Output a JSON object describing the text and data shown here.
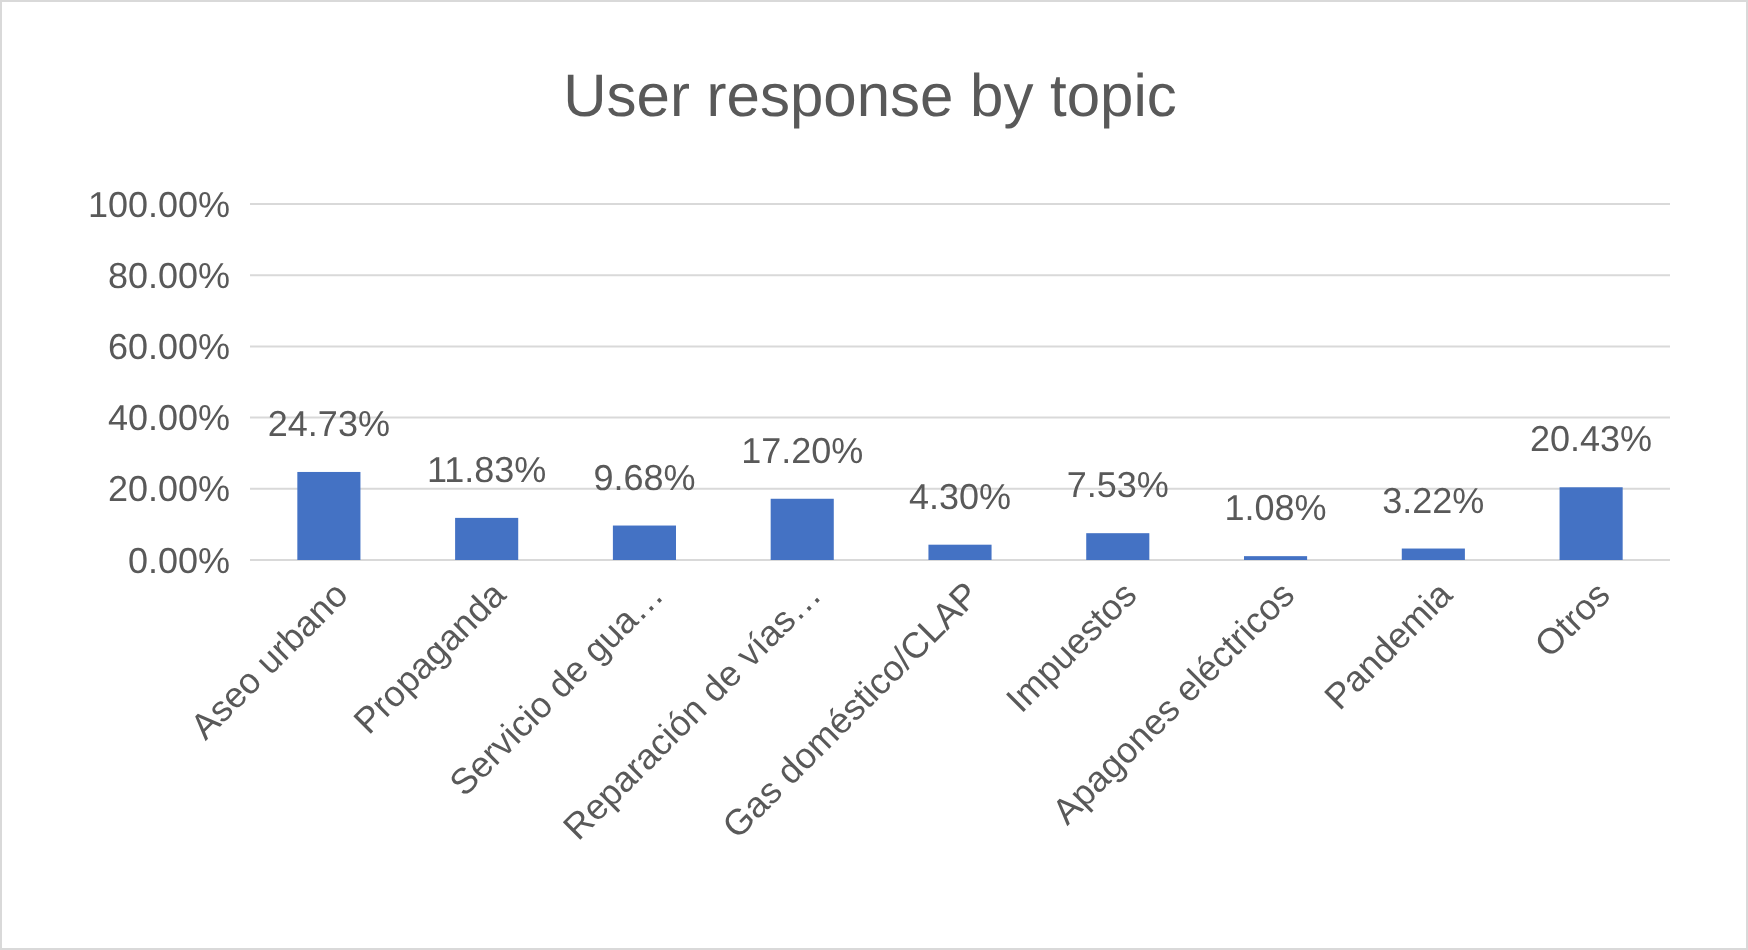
{
  "chart_data": {
    "type": "bar",
    "title": "User response by topic",
    "categories": [
      "Aseo urbano",
      "Propaganda",
      "Servicio de gua…",
      "Reparación de vías…",
      "Gas doméstico/CLAP",
      "Impuestos",
      "Apagones eléctricos",
      "Pandemia",
      "Otros"
    ],
    "values": [
      24.73,
      11.83,
      9.68,
      17.2,
      4.3,
      7.53,
      1.08,
      3.22,
      20.43
    ],
    "value_labels": [
      "24.73%",
      "11.83%",
      "9.68%",
      "17.20%",
      "4.30%",
      "7.53%",
      "1.08%",
      "3.22%",
      "20.43%"
    ],
    "color": "#4472c4",
    "ylim": [
      0,
      100
    ],
    "yticks": [
      {
        "value": 0,
        "label": "0.00%"
      },
      {
        "value": 20,
        "label": "20.00%"
      },
      {
        "value": 40,
        "label": "40.00%"
      },
      {
        "value": 60,
        "label": "60.00%"
      },
      {
        "value": 80,
        "label": "80.00%"
      },
      {
        "value": 100,
        "label": "100.00%"
      }
    ],
    "grid": "y"
  }
}
